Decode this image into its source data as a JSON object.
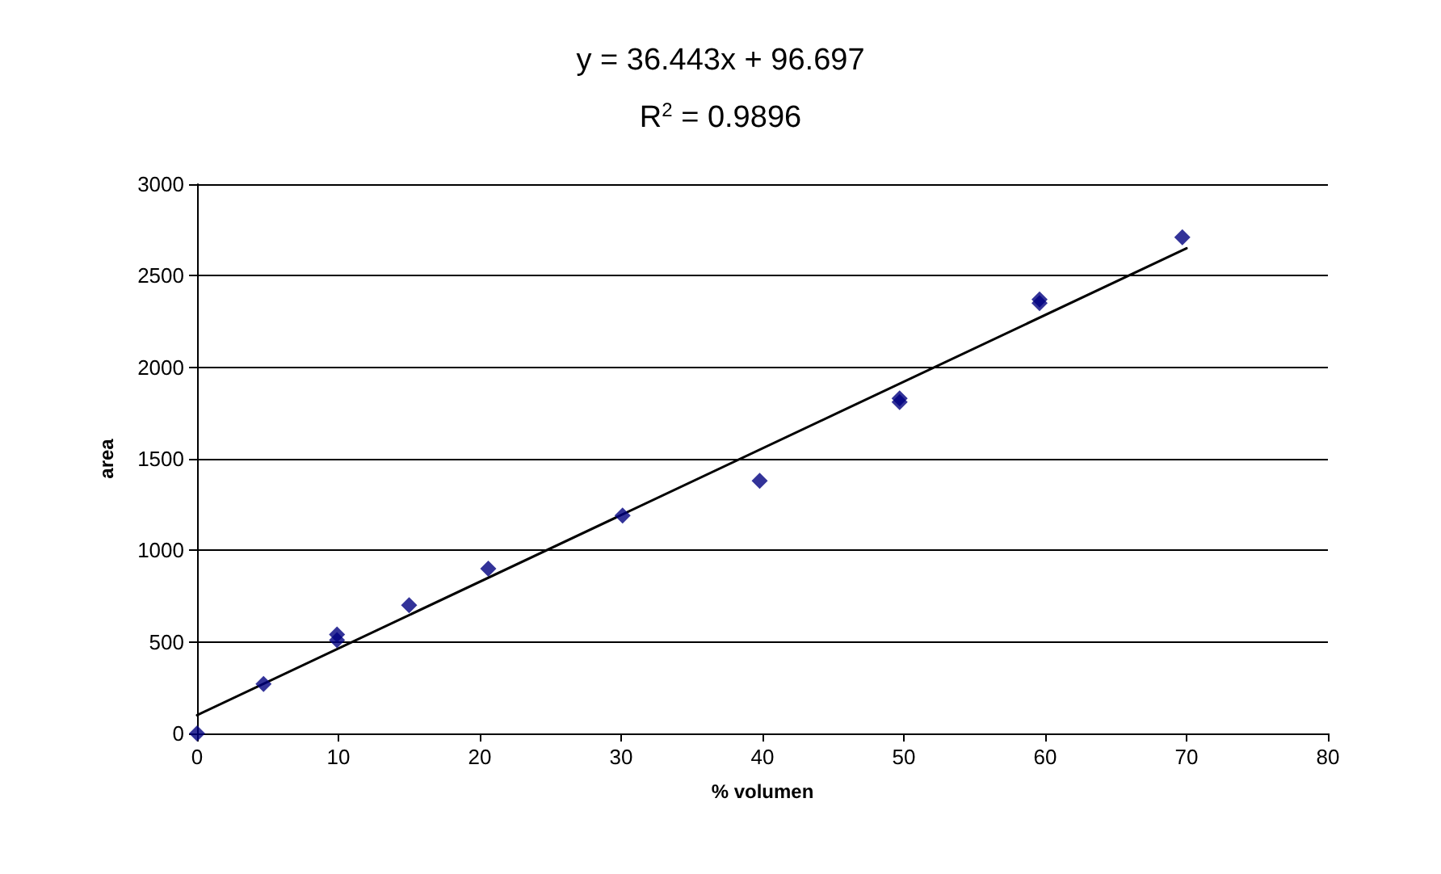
{
  "chart_data": {
    "type": "scatter",
    "xlabel": "% volumen",
    "ylabel": "area",
    "annotations": [
      "y = 36.443x + 96.697",
      "R$^{2}$ = 0.9896"
    ],
    "series": [
      {
        "color": "#000080",
        "marker": "diamond",
        "x": [
          0,
          4.7,
          9.9,
          9.9,
          15,
          20.6,
          30.1,
          39.8,
          49.7,
          49.7,
          59.6,
          59.6,
          69.7
        ],
        "values": [
          0,
          270,
          540,
          510,
          700,
          900,
          1190,
          1380,
          1830,
          1810,
          2370,
          2350,
          2710
        ]
      },
      {
        "type": "line",
        "color": "#000000",
        "marker": "none",
        "line_style": "solid",
        "x": [
          0,
          70
        ],
        "values": [
          100,
          2650
        ]
      }
    ],
    "xlim": [
      0,
      80
    ],
    "xticks": [
      0,
      10,
      20,
      30,
      40,
      50,
      60,
      70,
      80
    ],
    "ylim": [
      0,
      3000
    ],
    "yticks": [
      0,
      500,
      1000,
      1500,
      2000,
      2500,
      3000
    ],
    "grid": "y"
  }
}
